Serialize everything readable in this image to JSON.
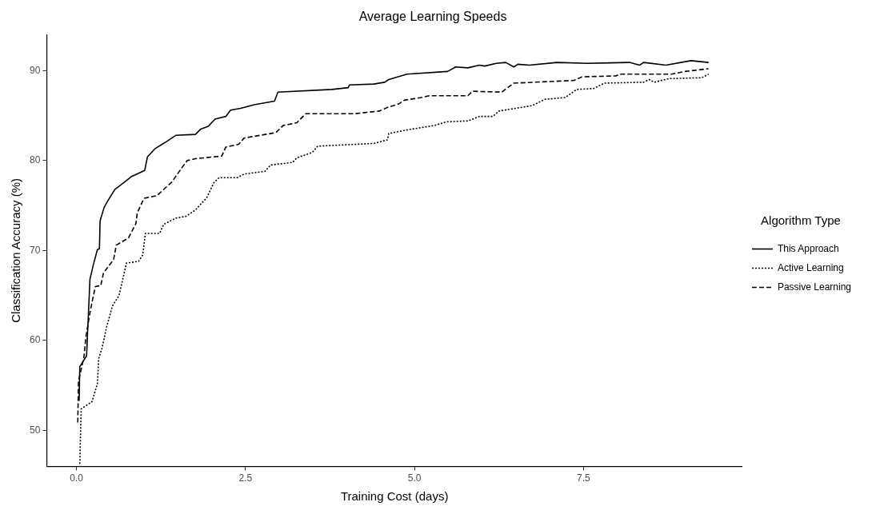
{
  "chart_data": {
    "type": "line",
    "title": "Average Learning Speeds",
    "xlabel": "Training Cost (days)",
    "ylabel": "Classification Accuracy (%)",
    "legend_title": "Algorithm Type",
    "legend": "right",
    "grid": false,
    "marker": "none",
    "xlim": [
      -0.44,
      9.85
    ],
    "xticks": [
      {
        "value": 0,
        "label": "0.0"
      },
      2.5,
      {
        "value": 5,
        "label": "5.0"
      },
      7.5
    ],
    "ylim": [
      46,
      94
    ],
    "yticks": [
      50,
      60,
      70,
      80,
      90
    ],
    "series": [
      {
        "name": "This Approach",
        "color": "#000000",
        "line_style": "solid",
        "x": [
          0.04,
          0.05,
          0.15,
          0.2,
          0.25,
          0.31,
          0.34,
          0.35,
          0.41,
          0.47,
          0.57,
          0.71,
          0.81,
          1.01,
          1.05,
          1.16,
          1.31,
          1.47,
          1.76,
          1.84,
          1.95,
          2.05,
          2.21,
          2.28,
          2.43,
          2.63,
          2.93,
          2.98,
          3.78,
          4.02,
          4.04,
          4.4,
          4.56,
          4.62,
          4.89,
          5.49,
          5.61,
          5.79,
          5.96,
          6.04,
          6.21,
          6.35,
          6.47,
          6.53,
          6.7,
          7.11,
          7.56,
          8.18,
          8.33,
          8.39,
          8.72,
          9.09,
          9.35
        ],
        "values": [
          53.3,
          57.1,
          58.3,
          66.8,
          68.4,
          70.1,
          70.2,
          73.3,
          74.8,
          75.6,
          76.8,
          77.6,
          78.2,
          78.9,
          80.4,
          81.3,
          82,
          82.8,
          82.9,
          83.5,
          83.8,
          84.6,
          84.9,
          85.6,
          85.8,
          86.2,
          86.6,
          87.6,
          87.9,
          88.1,
          88.4,
          88.5,
          88.7,
          89,
          89.6,
          89.9,
          90.4,
          90.3,
          90.6,
          90.5,
          90.8,
          90.9,
          90.4,
          90.7,
          90.6,
          90.9,
          90.8,
          90.9,
          90.6,
          90.9,
          90.6,
          91.1,
          90.9
        ]
      },
      {
        "name": "Active Learning",
        "color": "#000000",
        "line_style": "dotted",
        "x": [
          0.05,
          0.07,
          0.23,
          0.31,
          0.33,
          0.38,
          0.44,
          0.53,
          0.63,
          0.74,
          0.92,
          0.98,
          1.02,
          1.23,
          1.29,
          1.47,
          1.62,
          1.76,
          1.93,
          2.03,
          2.11,
          2.38,
          2.48,
          2.79,
          2.87,
          3.2,
          3.26,
          3.49,
          3.57,
          4.4,
          4.6,
          4.62,
          4.89,
          5.3,
          5.47,
          5.79,
          5.96,
          6.16,
          6.25,
          6.74,
          6.93,
          7.23,
          7.4,
          7.65,
          7.81,
          8.39,
          8.47,
          8.55,
          8.76,
          9.25,
          9.35
        ],
        "values": [
          46.3,
          52.4,
          53.2,
          55.2,
          58,
          59.2,
          61.3,
          63.8,
          65,
          68.6,
          68.8,
          69.5,
          71.9,
          71.9,
          72.9,
          73.6,
          73.8,
          74.5,
          75.9,
          77.5,
          78.1,
          78.1,
          78.5,
          78.8,
          79.5,
          79.8,
          80.3,
          80.9,
          81.6,
          81.9,
          82.3,
          83,
          83.4,
          83.9,
          84.3,
          84.4,
          84.9,
          84.9,
          85.5,
          86.1,
          86.8,
          87,
          87.9,
          88,
          88.6,
          88.7,
          89,
          88.7,
          89.1,
          89.2,
          89.6
        ]
      },
      {
        "name": "Passive Learning",
        "color": "#000000",
        "line_style": "dashed",
        "x": [
          0.02,
          0.03,
          0.11,
          0.14,
          0.21,
          0.28,
          0.36,
          0.4,
          0.55,
          0.59,
          0.77,
          0.88,
          0.9,
          1,
          1.19,
          1.41,
          1.56,
          1.64,
          1.76,
          2.15,
          2.21,
          2.4,
          2.48,
          2.95,
          3.06,
          3.26,
          3.39,
          4.11,
          4.48,
          4.6,
          4.77,
          4.85,
          5.1,
          5.22,
          5.79,
          5.86,
          6.29,
          6.47,
          7.36,
          7.48,
          7.98,
          8.04,
          8.8,
          9,
          9.35
        ],
        "values": [
          50.9,
          55.5,
          58.1,
          60.4,
          63.5,
          66,
          66.1,
          67.5,
          69,
          70.6,
          71.4,
          73,
          74.2,
          75.8,
          76.1,
          77.6,
          79.2,
          80,
          80.2,
          80.5,
          81.5,
          81.8,
          82.5,
          83.1,
          83.9,
          84.2,
          85.2,
          85.2,
          85.5,
          85.9,
          86.3,
          86.7,
          87,
          87.2,
          87.2,
          87.7,
          87.6,
          88.6,
          88.9,
          89.3,
          89.4,
          89.6,
          89.6,
          89.9,
          90.2
        ]
      }
    ]
  }
}
